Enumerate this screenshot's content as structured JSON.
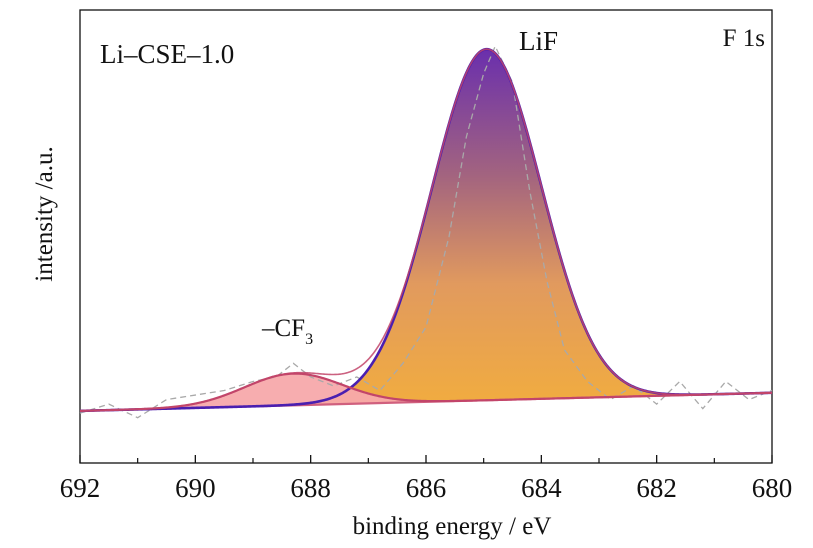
{
  "chart_data": {
    "type": "line",
    "title": "",
    "xlabel": "binding energy / eV",
    "ylabel": "intensity /a.u.",
    "xlim": [
      692,
      680
    ],
    "x_reversed": true,
    "x_ticks": [
      "692",
      "690",
      "688",
      "686",
      "684",
      "682",
      "680"
    ],
    "ylim": [
      0,
      1.0
    ],
    "y_ticks_shown": false,
    "grid": false,
    "legend": "none",
    "annotations": {
      "sample": "Li–CSE–1.0",
      "region": "F 1s",
      "peak_main": "LiF",
      "peak_minor_prefix": "–CF",
      "peak_minor_sub": "3"
    },
    "baseline": {
      "x": [
        692,
        680
      ],
      "y": [
        0.115,
        0.155
      ]
    },
    "peaks": [
      {
        "label": "LiF",
        "center": 684.95,
        "height": 0.775,
        "width": 0.95,
        "fill_colors": [
          "#f2ad3e",
          "#6a2fad"
        ],
        "line_color": "#4a1fb0"
      },
      {
        "label": "CF3",
        "center": 688.3,
        "height": 0.07,
        "width": 0.85,
        "fill_colors": [
          "#f7a9ab"
        ],
        "line_color": "#c2456a"
      }
    ],
    "series": [
      {
        "name": "measured",
        "style": "dashed",
        "color": "#a9a9a9",
        "x": [
          692,
          691.5,
          691.0,
          690.5,
          690.0,
          689.5,
          689.0,
          688.6,
          688.3,
          688.0,
          687.6,
          687.2,
          686.8,
          686.4,
          686.0,
          685.6,
          685.3,
          685.0,
          684.8,
          684.5,
          684.2,
          683.9,
          683.6,
          683.2,
          682.8,
          682.4,
          682.0,
          681.6,
          681.2,
          680.8,
          680.4,
          680.0
        ],
        "y": [
          0.11,
          0.13,
          0.1,
          0.14,
          0.15,
          0.16,
          0.18,
          0.19,
          0.22,
          0.19,
          0.17,
          0.19,
          0.16,
          0.22,
          0.3,
          0.5,
          0.72,
          0.86,
          0.92,
          0.84,
          0.6,
          0.4,
          0.25,
          0.18,
          0.14,
          0.17,
          0.13,
          0.18,
          0.12,
          0.18,
          0.14,
          0.16
        ]
      }
    ]
  }
}
